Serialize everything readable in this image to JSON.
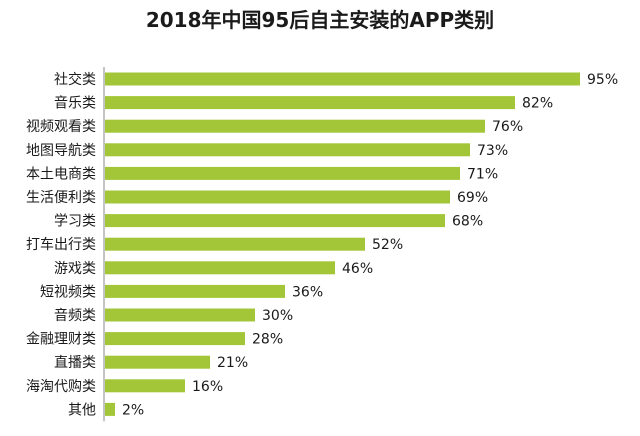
{
  "chart_data": {
    "type": "bar",
    "orientation": "horizontal",
    "title": "2018年中国95后自主安装的APP类别",
    "categories": [
      "社交类",
      "音乐类",
      "视频观看类",
      "地图导航类",
      "本土电商类",
      "生活便利类",
      "学习类",
      "打车出行类",
      "游戏类",
      "短视频类",
      "音频类",
      "金融理财类",
      "直播类",
      "海淘代购类",
      "其他"
    ],
    "values": [
      95,
      82,
      76,
      73,
      71,
      69,
      68,
      52,
      46,
      36,
      30,
      28,
      21,
      16,
      2
    ],
    "value_suffix": "%",
    "xlim": [
      0,
      100
    ],
    "grid": false,
    "legend": "none",
    "bar_color": "#a3c639"
  }
}
